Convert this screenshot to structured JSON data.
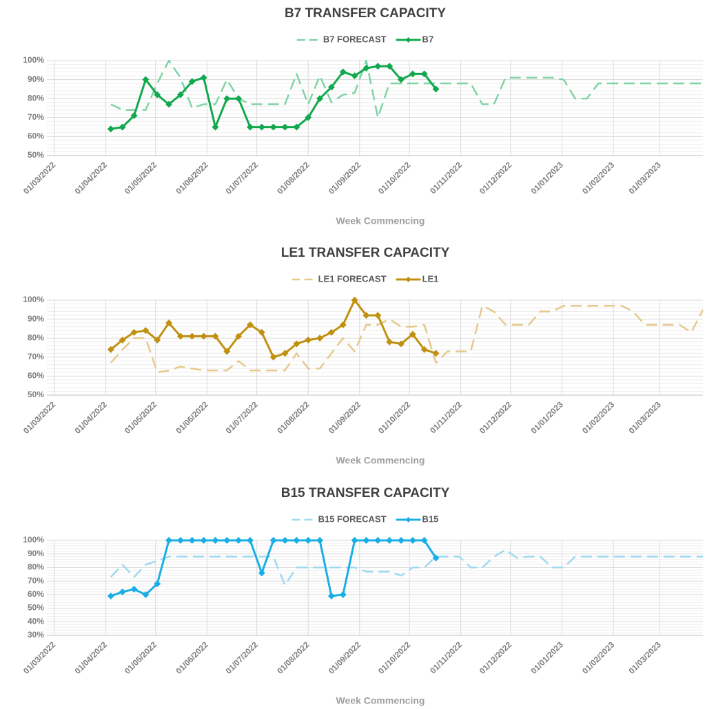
{
  "chart_data": [
    {
      "type": "line",
      "title": "B7 TRANSFER CAPACITY",
      "xlabel": "Week Commencing",
      "x": [
        "2022-04-04",
        "2022-04-11",
        "2022-04-18",
        "2022-04-25",
        "2022-05-02",
        "2022-05-09",
        "2022-05-16",
        "2022-05-23",
        "2022-05-30",
        "2022-06-06",
        "2022-06-13",
        "2022-06-20",
        "2022-06-27",
        "2022-07-04",
        "2022-07-11",
        "2022-07-18",
        "2022-07-25",
        "2022-08-01",
        "2022-08-08",
        "2022-08-15",
        "2022-08-22",
        "2022-08-29",
        "2022-09-05",
        "2022-09-12",
        "2022-09-19",
        "2022-09-26",
        "2022-10-03",
        "2022-10-10",
        "2022-10-17",
        "2022-10-24",
        "2022-10-31",
        "2022-11-07",
        "2022-11-14",
        "2022-11-21",
        "2022-11-28",
        "2022-12-05",
        "2022-12-12",
        "2022-12-19",
        "2022-12-26",
        "2023-01-02",
        "2023-01-09",
        "2023-01-16",
        "2023-01-23",
        "2023-01-30",
        "2023-02-06",
        "2023-02-13",
        "2023-02-20",
        "2023-02-27",
        "2023-03-06",
        "2023-03-13",
        "2023-03-20",
        "2023-03-27"
      ],
      "series": [
        {
          "name": "B7 FORECAST",
          "color": "#7fd3a5",
          "dashed": true,
          "values": [
            77,
            74,
            74,
            74,
            88,
            100,
            91,
            75,
            77,
            77,
            90,
            80,
            77,
            77,
            77,
            77,
            93,
            77,
            92,
            78,
            82,
            83,
            100,
            70,
            88,
            88,
            88,
            88,
            88,
            88,
            88,
            88,
            77,
            77,
            91,
            91,
            91,
            91,
            91,
            90,
            80,
            80,
            88,
            88,
            88,
            88,
            88,
            88,
            88,
            88,
            88,
            88
          ]
        },
        {
          "name": "B7",
          "color": "#12a84e",
          "marker": "diamond",
          "values": [
            64,
            65,
            71,
            90,
            82,
            77,
            82,
            89,
            91,
            65,
            80,
            80,
            65,
            65,
            65,
            65,
            65,
            70,
            80,
            86,
            94,
            92,
            96,
            97,
            97,
            90,
            93,
            93,
            85,
            null,
            null,
            null,
            null,
            null,
            null,
            null,
            null,
            null,
            null,
            null,
            null,
            null,
            null,
            null,
            null,
            null,
            null,
            null,
            null,
            null,
            null,
            null
          ]
        }
      ],
      "xlim": [
        "2022-03-01",
        "2023-03-27"
      ],
      "xticks": [
        {
          "value": "2022-03-01",
          "label": "01/03/2022"
        },
        {
          "value": "2022-04-01",
          "label": "01/04/2022"
        },
        {
          "value": "2022-05-01",
          "label": "01/05/2022"
        },
        {
          "value": "2022-06-01",
          "label": "01/06/2022"
        },
        {
          "value": "2022-07-01",
          "label": "01/07/2022"
        },
        {
          "value": "2022-08-01",
          "label": "01/08/2022"
        },
        {
          "value": "2022-09-01",
          "label": "01/09/2022"
        },
        {
          "value": "2022-10-01",
          "label": "01/10/2022"
        },
        {
          "value": "2022-11-01",
          "label": "01/11/2022"
        },
        {
          "value": "2022-12-01",
          "label": "01/12/2022"
        },
        {
          "value": "2023-01-01",
          "label": "01/01/2023"
        },
        {
          "value": "2023-02-01",
          "label": "01/02/2023"
        },
        {
          "value": "2023-03-01",
          "label": "01/03/2023"
        }
      ],
      "ylim": [
        50,
        100
      ],
      "yticks": [
        {
          "value": 50,
          "label": "50%"
        },
        {
          "value": 60,
          "label": "60%"
        },
        {
          "value": 70,
          "label": "70%"
        },
        {
          "value": 80,
          "label": "80%"
        },
        {
          "value": 90,
          "label": "90%"
        },
        {
          "value": 100,
          "label": "100%"
        }
      ],
      "grid": true,
      "legend": "top"
    },
    {
      "type": "line",
      "title": "LE1 TRANSFER CAPACITY",
      "xlabel": "Week Commencing",
      "x": [
        "2022-04-04",
        "2022-04-11",
        "2022-04-18",
        "2022-04-25",
        "2022-05-02",
        "2022-05-09",
        "2022-05-16",
        "2022-05-23",
        "2022-05-30",
        "2022-06-06",
        "2022-06-13",
        "2022-06-20",
        "2022-06-27",
        "2022-07-04",
        "2022-07-11",
        "2022-07-18",
        "2022-07-25",
        "2022-08-01",
        "2022-08-08",
        "2022-08-15",
        "2022-08-22",
        "2022-08-29",
        "2022-09-05",
        "2022-09-12",
        "2022-09-19",
        "2022-09-26",
        "2022-10-03",
        "2022-10-10",
        "2022-10-17",
        "2022-10-24",
        "2022-10-31",
        "2022-11-07",
        "2022-11-14",
        "2022-11-21",
        "2022-11-28",
        "2022-12-05",
        "2022-12-12",
        "2022-12-19",
        "2022-12-26",
        "2023-01-02",
        "2023-01-09",
        "2023-01-16",
        "2023-01-23",
        "2023-01-30",
        "2023-02-06",
        "2023-02-13",
        "2023-02-20",
        "2023-02-27",
        "2023-03-06",
        "2023-03-13",
        "2023-03-20",
        "2023-03-27"
      ],
      "series": [
        {
          "name": "LE1 FORECAST",
          "color": "#e6c98a",
          "dashed": true,
          "values": [
            67,
            74,
            80,
            80,
            62,
            63,
            65,
            64,
            63,
            63,
            63,
            68,
            63,
            63,
            63,
            63,
            72,
            64,
            64,
            72,
            80,
            73,
            87,
            87,
            90,
            86,
            86,
            87,
            67,
            73,
            73,
            73,
            97,
            94,
            87,
            87,
            87,
            94,
            94,
            97,
            97,
            97,
            97,
            97,
            97,
            94,
            87,
            87,
            87,
            87,
            83,
            95
          ]
        },
        {
          "name": "LE1",
          "color": "#c09010",
          "marker": "diamond",
          "values": [
            74,
            79,
            83,
            84,
            79,
            88,
            81,
            81,
            81,
            81,
            73,
            81,
            87,
            83,
            70,
            72,
            77,
            79,
            80,
            83,
            87,
            100,
            92,
            92,
            78,
            77,
            82,
            74,
            72,
            null,
            null,
            null,
            null,
            null,
            null,
            null,
            null,
            null,
            null,
            null,
            null,
            null,
            null,
            null,
            null,
            null,
            null,
            null,
            null,
            null,
            null,
            null
          ]
        }
      ],
      "xlim": [
        "2022-03-01",
        "2023-03-27"
      ],
      "xticks": [
        {
          "value": "2022-03-01",
          "label": "01/03/2022"
        },
        {
          "value": "2022-04-01",
          "label": "01/04/2022"
        },
        {
          "value": "2022-05-01",
          "label": "01/05/2022"
        },
        {
          "value": "2022-06-01",
          "label": "01/06/2022"
        },
        {
          "value": "2022-07-01",
          "label": "01/07/2022"
        },
        {
          "value": "2022-08-01",
          "label": "01/08/2022"
        },
        {
          "value": "2022-09-01",
          "label": "01/09/2022"
        },
        {
          "value": "2022-10-01",
          "label": "01/10/2022"
        },
        {
          "value": "2022-11-01",
          "label": "01/11/2022"
        },
        {
          "value": "2022-12-01",
          "label": "01/12/2022"
        },
        {
          "value": "2023-01-01",
          "label": "01/01/2023"
        },
        {
          "value": "2023-02-01",
          "label": "01/02/2023"
        },
        {
          "value": "2023-03-01",
          "label": "01/03/2023"
        }
      ],
      "ylim": [
        50,
        100
      ],
      "yticks": [
        {
          "value": 50,
          "label": "50%"
        },
        {
          "value": 60,
          "label": "60%"
        },
        {
          "value": 70,
          "label": "70%"
        },
        {
          "value": 80,
          "label": "80%"
        },
        {
          "value": 90,
          "label": "90%"
        },
        {
          "value": 100,
          "label": "100%"
        }
      ],
      "grid": true,
      "legend": "top"
    },
    {
      "type": "line",
      "title": "B15 TRANSFER CAPACITY",
      "xlabel": "Week Commencing",
      "x": [
        "2022-04-04",
        "2022-04-11",
        "2022-04-18",
        "2022-04-25",
        "2022-05-02",
        "2022-05-09",
        "2022-05-16",
        "2022-05-23",
        "2022-05-30",
        "2022-06-06",
        "2022-06-13",
        "2022-06-20",
        "2022-06-27",
        "2022-07-04",
        "2022-07-11",
        "2022-07-18",
        "2022-07-25",
        "2022-08-01",
        "2022-08-08",
        "2022-08-15",
        "2022-08-22",
        "2022-08-29",
        "2022-09-05",
        "2022-09-12",
        "2022-09-19",
        "2022-09-26",
        "2022-10-03",
        "2022-10-10",
        "2022-10-17",
        "2022-10-24",
        "2022-10-31",
        "2022-11-07",
        "2022-11-14",
        "2022-11-21",
        "2022-11-28",
        "2022-12-05",
        "2022-12-12",
        "2022-12-19",
        "2022-12-26",
        "2023-01-02",
        "2023-01-09",
        "2023-01-16",
        "2023-01-23",
        "2023-01-30",
        "2023-02-06",
        "2023-02-13",
        "2023-02-20",
        "2023-02-27",
        "2023-03-06",
        "2023-03-13",
        "2023-03-20",
        "2023-03-27"
      ],
      "series": [
        {
          "name": "B15 FORECAST",
          "color": "#9dd9f0",
          "dashed": true,
          "values": [
            73,
            82,
            73,
            82,
            85,
            88,
            88,
            88,
            88,
            88,
            88,
            88,
            88,
            88,
            88,
            67,
            80,
            80,
            80,
            80,
            80,
            80,
            77,
            77,
            77,
            74,
            80,
            80,
            88,
            88,
            88,
            80,
            80,
            88,
            93,
            87,
            88,
            88,
            80,
            80,
            88,
            88,
            88,
            88,
            88,
            88,
            88,
            88,
            88,
            88,
            88,
            88
          ]
        },
        {
          "name": "B15",
          "color": "#19aee6",
          "marker": "diamond",
          "values": [
            59,
            62,
            64,
            60,
            68,
            100,
            100,
            100,
            100,
            100,
            100,
            100,
            100,
            76,
            100,
            100,
            100,
            100,
            100,
            59,
            60,
            100,
            100,
            100,
            100,
            100,
            100,
            100,
            87,
            null,
            null,
            null,
            null,
            null,
            null,
            null,
            null,
            null,
            null,
            null,
            null,
            null,
            null,
            null,
            null,
            null,
            null,
            null,
            null,
            null,
            null,
            null
          ]
        }
      ],
      "xlim": [
        "2022-03-01",
        "2023-03-27"
      ],
      "xticks": [
        {
          "value": "2022-03-01",
          "label": "01/03/2022"
        },
        {
          "value": "2022-04-01",
          "label": "01/04/2022"
        },
        {
          "value": "2022-05-01",
          "label": "01/05/2022"
        },
        {
          "value": "2022-06-01",
          "label": "01/06/2022"
        },
        {
          "value": "2022-07-01",
          "label": "01/07/2022"
        },
        {
          "value": "2022-08-01",
          "label": "01/08/2022"
        },
        {
          "value": "2022-09-01",
          "label": "01/09/2022"
        },
        {
          "value": "2022-10-01",
          "label": "01/10/2022"
        },
        {
          "value": "2022-11-01",
          "label": "01/11/2022"
        },
        {
          "value": "2022-12-01",
          "label": "01/12/2022"
        },
        {
          "value": "2023-01-01",
          "label": "01/01/2023"
        },
        {
          "value": "2023-02-01",
          "label": "01/02/2023"
        },
        {
          "value": "2023-03-01",
          "label": "01/03/2023"
        }
      ],
      "ylim": [
        30,
        100
      ],
      "yticks": [
        {
          "value": 30,
          "label": "30%"
        },
        {
          "value": 40,
          "label": "40%"
        },
        {
          "value": 50,
          "label": "50%"
        },
        {
          "value": 60,
          "label": "60%"
        },
        {
          "value": 70,
          "label": "70%"
        },
        {
          "value": 80,
          "label": "80%"
        },
        {
          "value": 90,
          "label": "90%"
        },
        {
          "value": 100,
          "label": "100%"
        }
      ],
      "grid": true,
      "legend": "top"
    }
  ]
}
